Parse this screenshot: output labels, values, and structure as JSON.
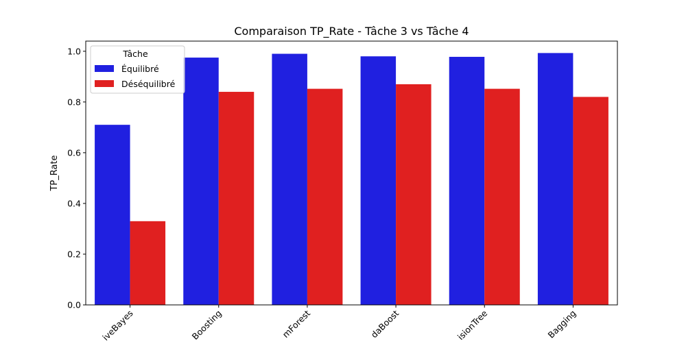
{
  "chart_data": {
    "type": "bar",
    "title": "Comparaison TP_Rate - Tâche 3 vs Tâche 4",
    "xlabel": "",
    "ylabel": "TP_Rate",
    "ylim": [
      0,
      1.04
    ],
    "yticks": [
      "0.0",
      "0.2",
      "0.4",
      "0.6",
      "0.8",
      "1.0"
    ],
    "categories": [
      "NaiveBayes",
      "GradientBoosting",
      "RandomForest",
      "AdaBoost",
      "DecisionTree",
      "Bagging"
    ],
    "category_labels_visible": [
      "iveBayes",
      "Boosting",
      "mForest",
      "daBoost",
      "isionTree",
      "Bagging"
    ],
    "series": [
      {
        "name": "Équilibré",
        "color": "#2020e0",
        "values": [
          0.71,
          0.975,
          0.99,
          0.98,
          0.978,
          0.993
        ]
      },
      {
        "name": "Déséquilibré",
        "color": "#e02020",
        "values": [
          0.33,
          0.84,
          0.852,
          0.87,
          0.852,
          0.82
        ]
      }
    ],
    "legend": {
      "title": "Tâche",
      "placement": "upper-left"
    },
    "grid": false
  }
}
